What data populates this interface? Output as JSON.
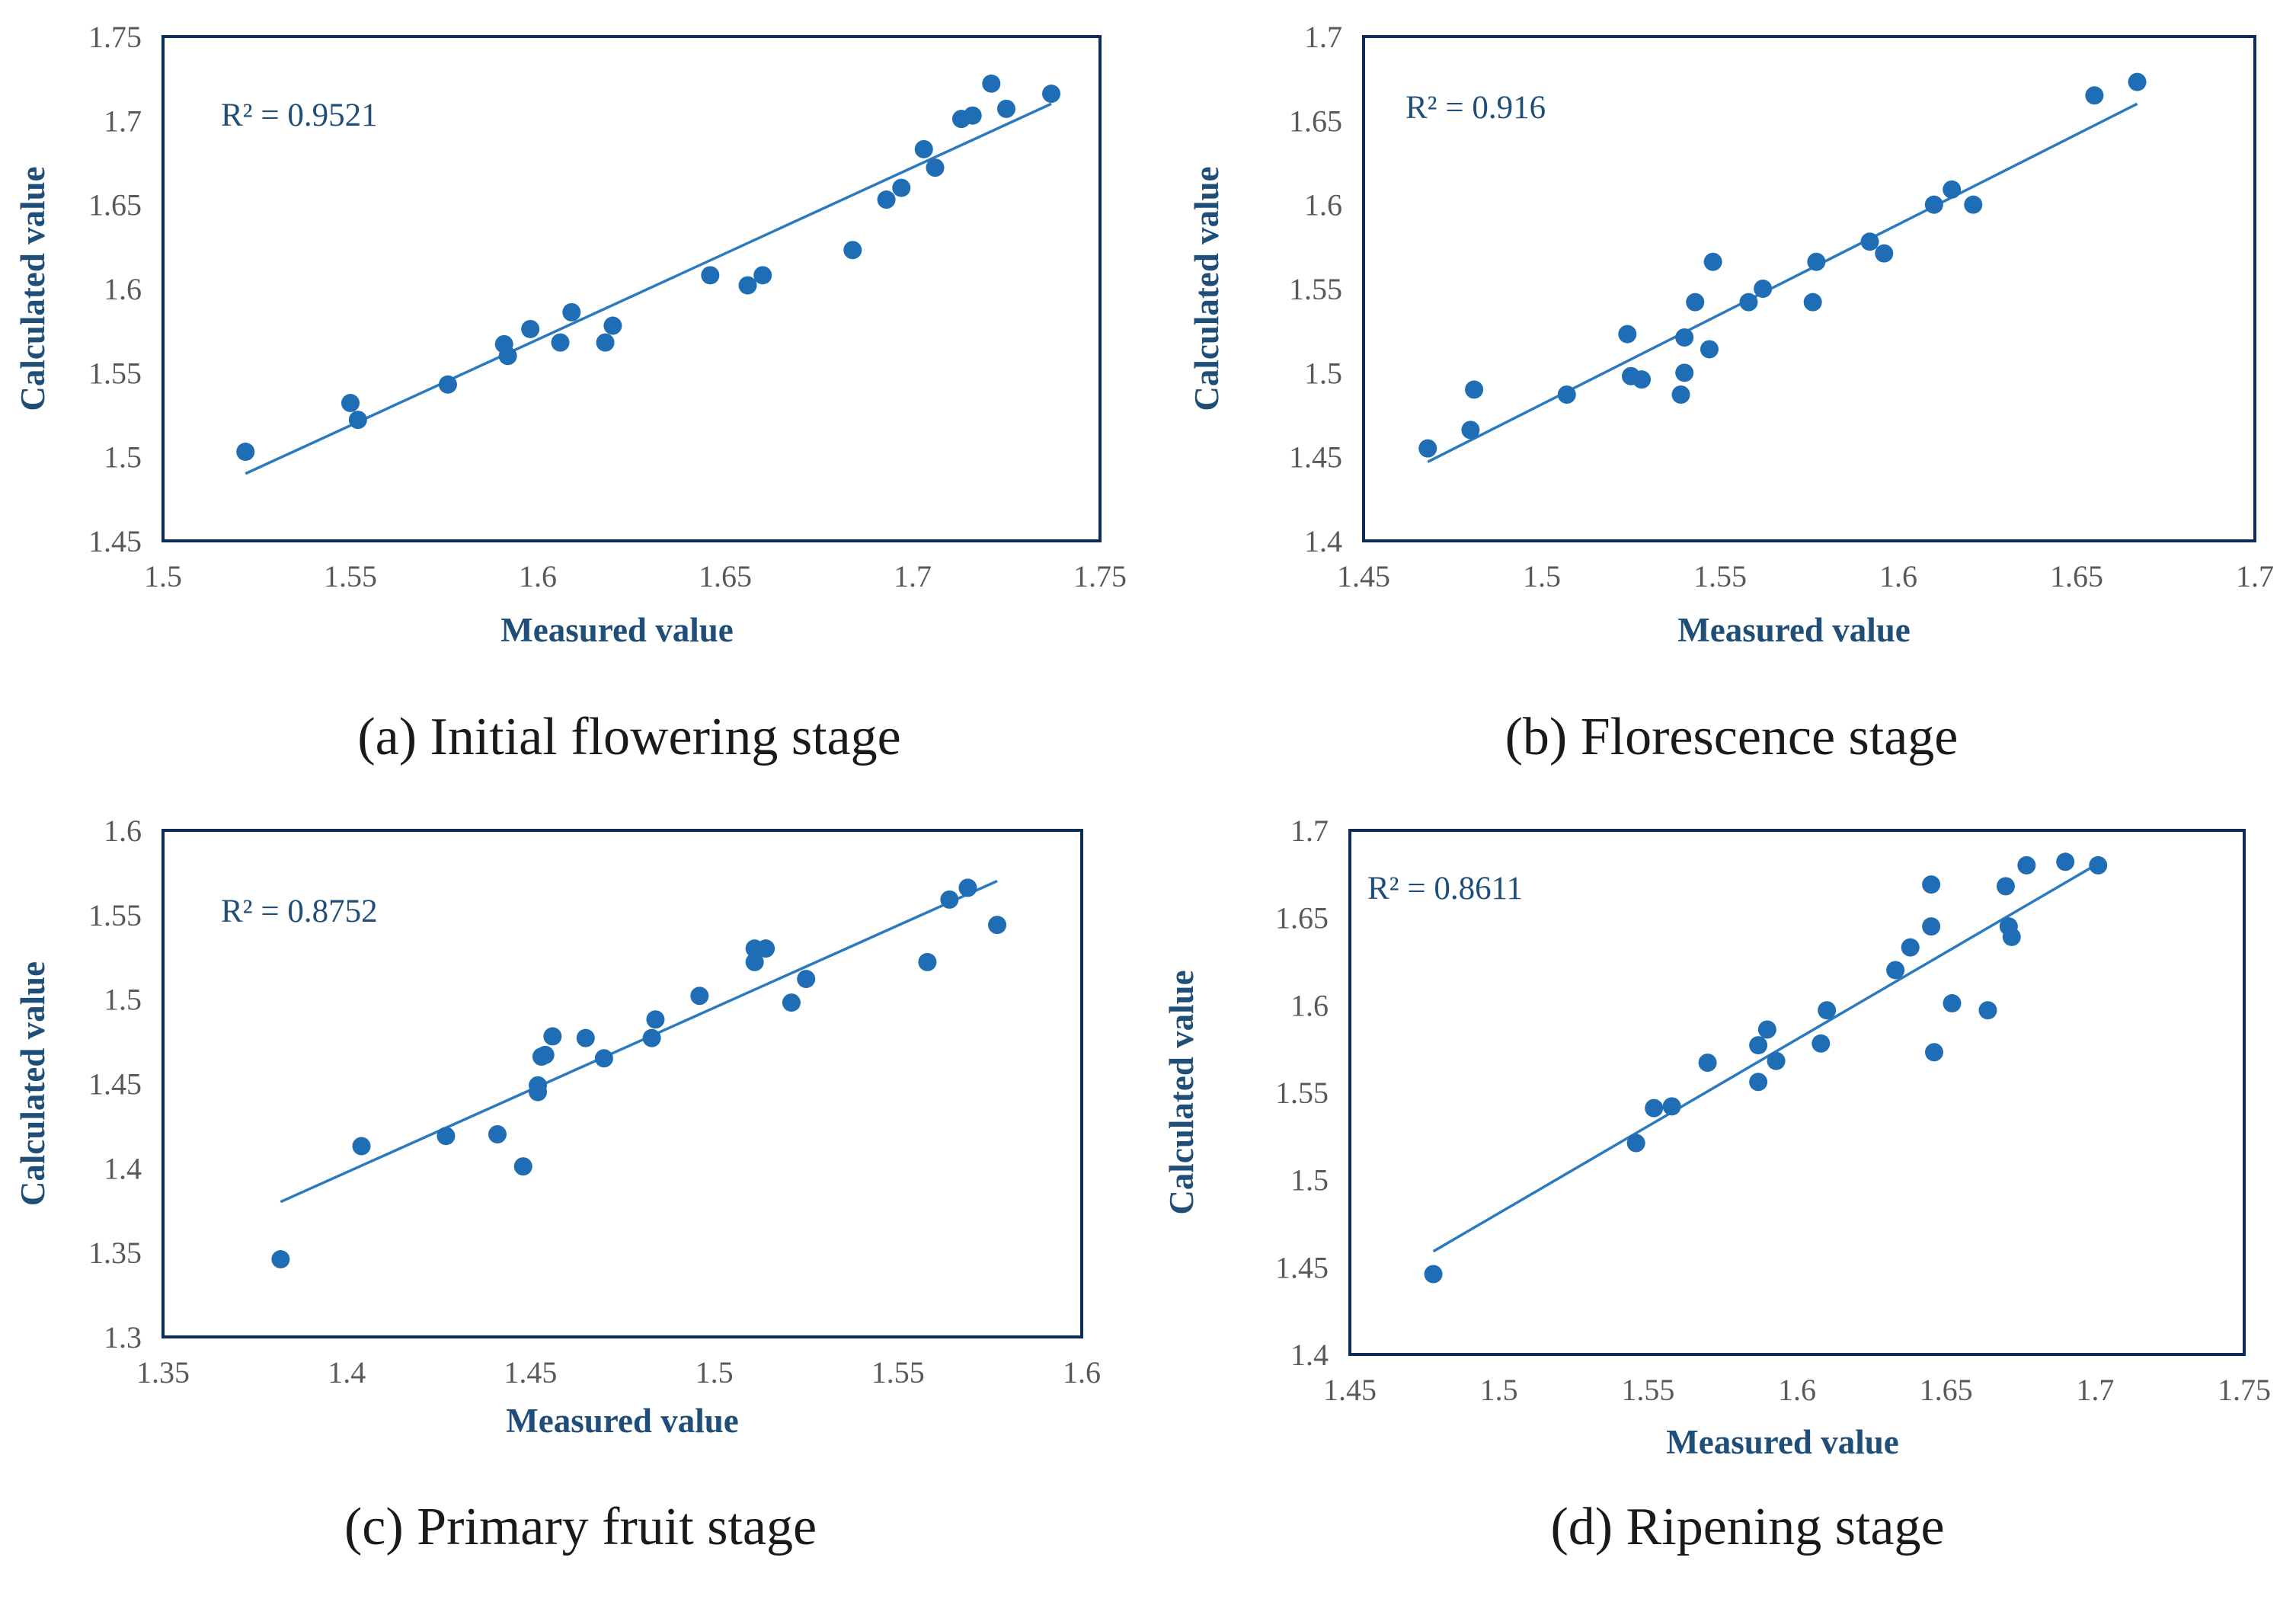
{
  "charts": [
    {
      "type": "scatter",
      "caption": "(a) Initial flowering stage",
      "annotation": "R² = 0.9521",
      "xlabel": "Measured value",
      "ylabel": "Calculated  value",
      "xlim": [
        1.5,
        1.75
      ],
      "ylim": [
        1.45,
        1.75
      ],
      "xticks": [
        "1.5",
        "1.55",
        "1.6",
        "1.65",
        "1.7",
        "1.75"
      ],
      "yticks": [
        "1.45",
        "1.5",
        "1.55",
        "1.6",
        "1.65",
        "1.7",
        "1.75"
      ],
      "trendline": {
        "x1": 1.522,
        "y1": 1.49,
        "x2": 1.737,
        "y2": 1.71
      },
      "points": [
        [
          1.522,
          1.503
        ],
        [
          1.55,
          1.532
        ],
        [
          1.552,
          1.522
        ],
        [
          1.576,
          1.543
        ],
        [
          1.591,
          1.567
        ],
        [
          1.592,
          1.56
        ],
        [
          1.598,
          1.576
        ],
        [
          1.606,
          1.568
        ],
        [
          1.609,
          1.586
        ],
        [
          1.618,
          1.568
        ],
        [
          1.62,
          1.578
        ],
        [
          1.646,
          1.608
        ],
        [
          1.656,
          1.602
        ],
        [
          1.66,
          1.608
        ],
        [
          1.684,
          1.623
        ],
        [
          1.693,
          1.653
        ],
        [
          1.697,
          1.66
        ],
        [
          1.703,
          1.683
        ],
        [
          1.706,
          1.672
        ],
        [
          1.713,
          1.701
        ],
        [
          1.716,
          1.703
        ],
        [
          1.721,
          1.722
        ],
        [
          1.725,
          1.707
        ],
        [
          1.737,
          1.716
        ]
      ]
    },
    {
      "type": "scatter",
      "caption": "(b) Florescence stage",
      "annotation": "R² = 0.916",
      "xlabel": "Measured value",
      "ylabel": "Calculated  value",
      "xlim": [
        1.45,
        1.7
      ],
      "ylim": [
        1.4,
        1.7
      ],
      "xticks": [
        "1.45",
        "1.5",
        "1.55",
        "1.6",
        "1.65",
        "1.7"
      ],
      "yticks": [
        "1.4",
        "1.45",
        "1.5",
        "1.55",
        "1.6",
        "1.65",
        "1.7"
      ],
      "trendline": {
        "x1": 1.468,
        "y1": 1.447,
        "x2": 1.667,
        "y2": 1.66
      },
      "points": [
        [
          1.468,
          1.455
        ],
        [
          1.48,
          1.466
        ],
        [
          1.481,
          1.49
        ],
        [
          1.507,
          1.487
        ],
        [
          1.524,
          1.523
        ],
        [
          1.525,
          1.498
        ],
        [
          1.528,
          1.496
        ],
        [
          1.539,
          1.487
        ],
        [
          1.54,
          1.5
        ],
        [
          1.54,
          1.521
        ],
        [
          1.543,
          1.542
        ],
        [
          1.547,
          1.514
        ],
        [
          1.548,
          1.566
        ],
        [
          1.558,
          1.542
        ],
        [
          1.562,
          1.55
        ],
        [
          1.576,
          1.542
        ],
        [
          1.577,
          1.566
        ],
        [
          1.592,
          1.578
        ],
        [
          1.596,
          1.571
        ],
        [
          1.61,
          1.6
        ],
        [
          1.615,
          1.609
        ],
        [
          1.621,
          1.6
        ],
        [
          1.655,
          1.665
        ],
        [
          1.667,
          1.673
        ]
      ]
    },
    {
      "type": "scatter",
      "caption": "(c) Primary fruit stage",
      "annotation": "R² = 0.8752",
      "xlabel": "Measured value",
      "ylabel": "Calculated  value",
      "xlim": [
        1.35,
        1.6
      ],
      "ylim": [
        1.3,
        1.6
      ],
      "xticks": [
        "1.35",
        "1.4",
        "1.45",
        "1.5",
        "1.55",
        "1.6"
      ],
      "yticks": [
        "1.3",
        "1.35",
        "1.4",
        "1.45",
        "1.5",
        "1.55",
        "1.6"
      ],
      "trendline": {
        "x1": 1.382,
        "y1": 1.38,
        "x2": 1.577,
        "y2": 1.57
      },
      "points": [
        [
          1.382,
          1.346
        ],
        [
          1.404,
          1.413
        ],
        [
          1.427,
          1.419
        ],
        [
          1.441,
          1.42
        ],
        [
          1.448,
          1.401
        ],
        [
          1.452,
          1.445
        ],
        [
          1.452,
          1.449
        ],
        [
          1.453,
          1.466
        ],
        [
          1.454,
          1.467
        ],
        [
          1.456,
          1.478
        ],
        [
          1.465,
          1.477
        ],
        [
          1.47,
          1.465
        ],
        [
          1.483,
          1.477
        ],
        [
          1.484,
          1.488
        ],
        [
          1.496,
          1.502
        ],
        [
          1.511,
          1.522
        ],
        [
          1.511,
          1.53
        ],
        [
          1.514,
          1.53
        ],
        [
          1.521,
          1.498
        ],
        [
          1.525,
          1.512
        ],
        [
          1.558,
          1.522
        ],
        [
          1.564,
          1.559
        ],
        [
          1.569,
          1.566
        ],
        [
          1.577,
          1.544
        ]
      ]
    },
    {
      "type": "scatter",
      "caption": "(d) Ripening stage",
      "annotation": "R² = 0.8611",
      "xlabel": "Measured value",
      "ylabel": "Calculated  value",
      "xlim": [
        1.45,
        1.75
      ],
      "ylim": [
        1.4,
        1.7
      ],
      "xticks": [
        "1.45",
        "1.5",
        "1.55",
        "1.6",
        "1.65",
        "1.7",
        "1.75"
      ],
      "yticks": [
        "1.4",
        "1.45",
        "1.5",
        "1.55",
        "1.6",
        "1.65",
        "1.7"
      ],
      "trendline": {
        "x1": 1.478,
        "y1": 1.459,
        "x2": 1.701,
        "y2": 1.681
      },
      "points": [
        [
          1.478,
          1.446
        ],
        [
          1.546,
          1.521
        ],
        [
          1.552,
          1.541
        ],
        [
          1.558,
          1.542
        ],
        [
          1.57,
          1.567
        ],
        [
          1.587,
          1.577
        ],
        [
          1.587,
          1.556
        ],
        [
          1.59,
          1.586
        ],
        [
          1.593,
          1.568
        ],
        [
          1.608,
          1.578
        ],
        [
          1.61,
          1.597
        ],
        [
          1.633,
          1.62
        ],
        [
          1.638,
          1.633
        ],
        [
          1.645,
          1.645
        ],
        [
          1.645,
          1.669
        ],
        [
          1.646,
          1.573
        ],
        [
          1.652,
          1.601
        ],
        [
          1.664,
          1.597
        ],
        [
          1.67,
          1.668
        ],
        [
          1.671,
          1.645
        ],
        [
          1.672,
          1.639
        ],
        [
          1.677,
          1.68
        ],
        [
          1.69,
          1.682
        ],
        [
          1.701,
          1.68
        ]
      ]
    }
  ]
}
